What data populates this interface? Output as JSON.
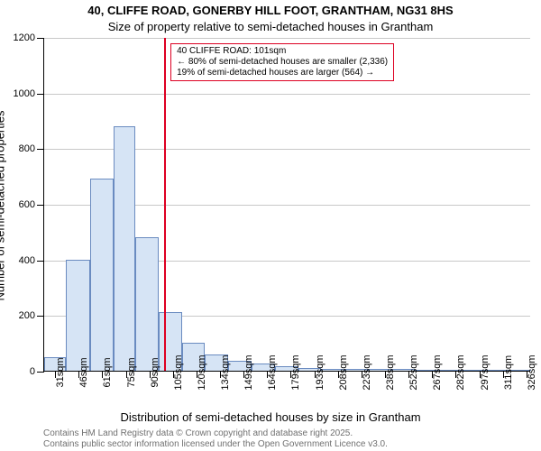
{
  "title": "40, CLIFFE ROAD, GONERBY HILL FOOT, GRANTHAM, NG31 8HS",
  "subtitle": "Size of property relative to semi-detached houses in Grantham",
  "ylabel": "Number of semi-detached properties",
  "xlabel": "Distribution of semi-detached houses by size in Grantham",
  "footer_line1": "Contains HM Land Registry data © Crown copyright and database right 2025.",
  "footer_line2": "Contains public sector information licensed under the Open Government Licence v3.0.",
  "annotation": {
    "line1": "40 CLIFFE ROAD: 101sqm",
    "line2": "← 80% of semi-detached houses are smaller (2,336)",
    "line3": "     19% of semi-detached houses are larger (564) →",
    "border_color": "#dd0022",
    "font_size": 10
  },
  "marker": {
    "value_x": 101,
    "color": "#dd0022"
  },
  "chart": {
    "type": "histogram",
    "background": "#ffffff",
    "bar_fill": "#d6e4f5",
    "bar_stroke": "#6a8bc0",
    "grid_color": "#c8c8c8",
    "title_fontsize": 13,
    "subtitle_fontsize": 13,
    "axis_label_fontsize": 13,
    "tick_fontsize": 11,
    "footer_fontsize": 10,
    "footer_color": "#707070",
    "ylim": [
      0,
      1200
    ],
    "ytick_step": 200,
    "xlim": [
      24,
      334
    ],
    "x_tick_start": 31,
    "x_tick_step": 15,
    "bin_edges": [
      24,
      38,
      53,
      68,
      82,
      97,
      112,
      126,
      141,
      156,
      171,
      186,
      200,
      215,
      230,
      245,
      260,
      274,
      289,
      304,
      319,
      334
    ],
    "counts": [
      50,
      400,
      690,
      880,
      480,
      210,
      100,
      60,
      35,
      25,
      15,
      10,
      8,
      7,
      6,
      5,
      4,
      3,
      2,
      2,
      1
    ],
    "xtick_labels": [
      "31sqm",
      "46sqm",
      "61sqm",
      "75sqm",
      "90sqm",
      "105sqm",
      "120sqm",
      "134sqm",
      "149sqm",
      "164sqm",
      "179sqm",
      "193sqm",
      "208sqm",
      "223sqm",
      "238sqm",
      "252sqm",
      "267sqm",
      "282sqm",
      "297sqm",
      "311sqm",
      "326sqm"
    ]
  }
}
